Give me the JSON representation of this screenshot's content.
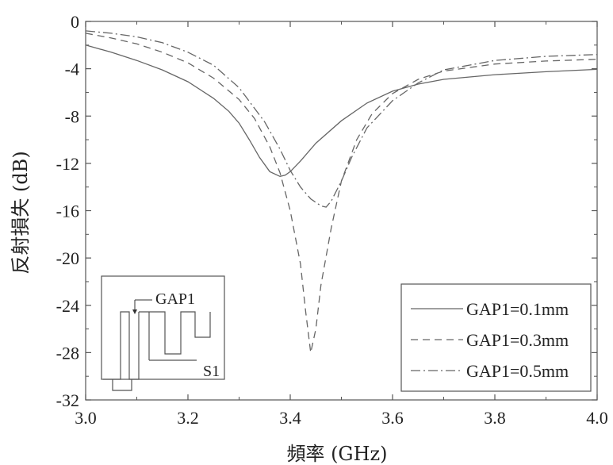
{
  "chart_data": {
    "type": "line",
    "xlabel": "頻率 (GHz)",
    "ylabel": "反射損失 (dB)",
    "xlim": [
      3.0,
      4.0
    ],
    "ylim": [
      -32,
      0
    ],
    "x_ticks": [
      "3.0",
      "3.2",
      "3.4",
      "3.6",
      "3.8",
      "4.0"
    ],
    "y_ticks": [
      "0",
      "-4",
      "-8",
      "-12",
      "-16",
      "-20",
      "-24",
      "-28",
      "-32"
    ],
    "grid": false,
    "legend_position": "bottom-right",
    "series": [
      {
        "name": "GAP1=0.1mm",
        "line_style": "solid",
        "x": [
          3.0,
          3.05,
          3.1,
          3.15,
          3.2,
          3.25,
          3.28,
          3.3,
          3.32,
          3.34,
          3.36,
          3.38,
          3.39,
          3.4,
          3.42,
          3.45,
          3.5,
          3.55,
          3.6,
          3.65,
          3.7,
          3.8,
          3.9,
          4.0
        ],
        "y": [
          -2.0,
          -2.6,
          -3.3,
          -4.1,
          -5.1,
          -6.5,
          -7.6,
          -8.6,
          -10.0,
          -11.5,
          -12.7,
          -13.1,
          -13.0,
          -12.7,
          -11.8,
          -10.3,
          -8.4,
          -6.9,
          -5.9,
          -5.3,
          -4.9,
          -4.5,
          -4.25,
          -4.05
        ]
      },
      {
        "name": "GAP1=0.3mm",
        "line_style": "dashed",
        "x": [
          3.0,
          3.05,
          3.1,
          3.15,
          3.2,
          3.25,
          3.3,
          3.33,
          3.36,
          3.38,
          3.4,
          3.42,
          3.43,
          3.44,
          3.45,
          3.46,
          3.48,
          3.5,
          3.53,
          3.56,
          3.6,
          3.65,
          3.7,
          3.8,
          3.9,
          4.0
        ],
        "y": [
          -1.0,
          -1.4,
          -1.9,
          -2.6,
          -3.5,
          -4.8,
          -6.6,
          -8.2,
          -10.6,
          -12.8,
          -16.0,
          -20.5,
          -24.5,
          -28.0,
          -26.0,
          -22.3,
          -17.5,
          -13.5,
          -10.0,
          -7.8,
          -6.1,
          -4.9,
          -4.2,
          -3.6,
          -3.35,
          -3.2
        ]
      },
      {
        "name": "GAP1=0.5mm",
        "line_style": "dash-dot",
        "x": [
          3.0,
          3.05,
          3.1,
          3.15,
          3.2,
          3.25,
          3.3,
          3.35,
          3.38,
          3.4,
          3.42,
          3.44,
          3.46,
          3.47,
          3.48,
          3.5,
          3.52,
          3.55,
          3.6,
          3.65,
          3.7,
          3.8,
          3.9,
          4.0
        ],
        "y": [
          -0.8,
          -1.0,
          -1.3,
          -1.8,
          -2.6,
          -3.7,
          -5.6,
          -8.5,
          -10.8,
          -12.6,
          -14.0,
          -15.0,
          -15.6,
          -15.7,
          -15.2,
          -13.5,
          -11.5,
          -9.0,
          -6.7,
          -5.2,
          -4.1,
          -3.3,
          -2.95,
          -2.8
        ]
      }
    ]
  },
  "inset": {
    "gap_label": "GAP1",
    "s_label": "S1"
  }
}
